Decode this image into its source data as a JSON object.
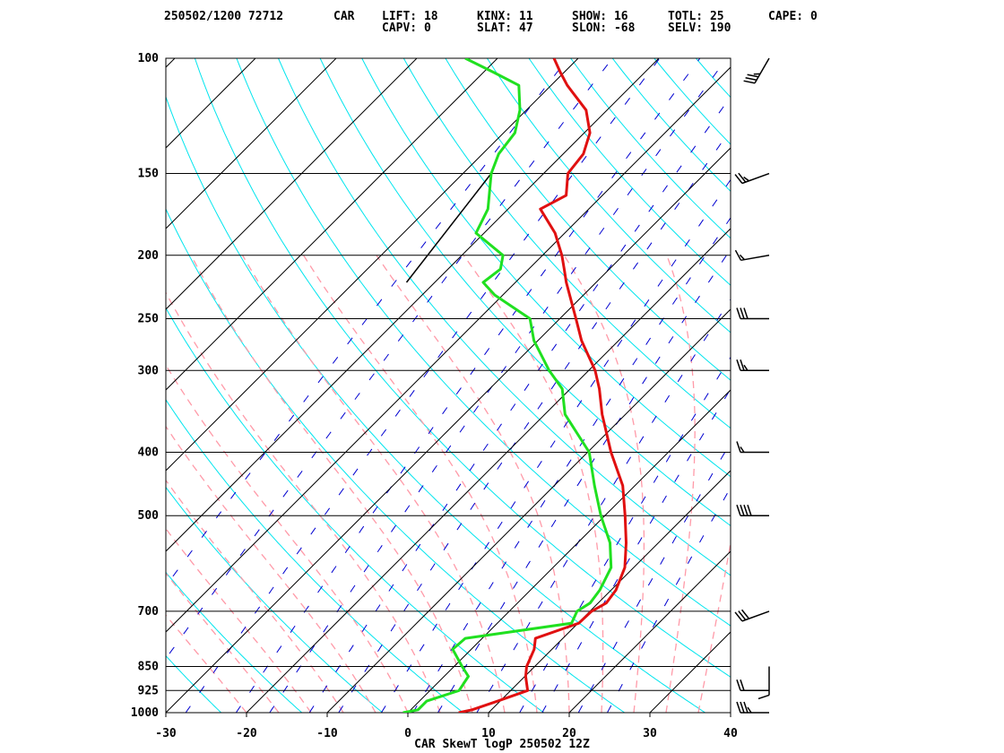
{
  "header": {
    "line1": [
      {
        "key": "date_station",
        "text": "250502/1200 72712"
      },
      {
        "key": "station",
        "text": "CAR"
      },
      {
        "key": "lift",
        "text": "LIFT:     18"
      },
      {
        "key": "kinx",
        "text": "KINX:     11"
      },
      {
        "key": "show",
        "text": "SHOW:     16"
      },
      {
        "key": "totl",
        "text": "TOTL:     25"
      },
      {
        "key": "cape",
        "text": "CAPE:      0"
      }
    ],
    "line2": [
      {
        "key": "capv",
        "text": "CAPV:      0"
      },
      {
        "key": "slat",
        "text": "SLAT:     47"
      },
      {
        "key": "slon",
        "text": "SLON:    -68"
      },
      {
        "key": "selv",
        "text": "SELV:    190"
      }
    ]
  },
  "chart_data": {
    "type": "line",
    "subtype": "skew-T log-P diagram",
    "title": "CAR SkewT logP 250502 12Z",
    "xlabel": "",
    "ylabel": "",
    "x_range_c": [
      -30,
      40
    ],
    "x_ticks": [
      -30,
      -20,
      -10,
      0,
      10,
      20,
      30,
      40
    ],
    "x_tick_labels": [
      "-30",
      "-20",
      "-10",
      "0",
      "10",
      "20",
      "30",
      "40"
    ],
    "p_range_hpa": [
      1000,
      100
    ],
    "p_levels": [
      1000,
      925,
      850,
      700,
      500,
      400,
      300,
      250,
      200,
      150,
      100
    ],
    "p_level_labels": [
      "1000",
      "925",
      "850",
      "700",
      "500",
      "400",
      "300",
      "250",
      "200",
      "150",
      "100"
    ],
    "series": [
      {
        "key": "temperature",
        "color": "#e01010",
        "points": [
          {
            "p": 1000,
            "t": 6.3
          },
          {
            "p": 990,
            "t": 7.6
          },
          {
            "p": 960,
            "t": 9.7
          },
          {
            "p": 925,
            "t": 12.1
          },
          {
            "p": 880,
            "t": 10.1
          },
          {
            "p": 850,
            "t": 9.0
          },
          {
            "p": 800,
            "t": 7.8
          },
          {
            "p": 770,
            "t": 6.6
          },
          {
            "p": 730,
            "t": 10.1
          },
          {
            "p": 700,
            "t": 10.2
          },
          {
            "p": 680,
            "t": 11.0
          },
          {
            "p": 650,
            "t": 10.6
          },
          {
            "p": 600,
            "t": 8.9
          },
          {
            "p": 550,
            "t": 6.0
          },
          {
            "p": 500,
            "t": 2.5
          },
          {
            "p": 450,
            "t": -1.5
          },
          {
            "p": 400,
            "t": -7.1
          },
          {
            "p": 350,
            "t": -12.9
          },
          {
            "p": 320,
            "t": -16.4
          },
          {
            "p": 300,
            "t": -19.2
          },
          {
            "p": 270,
            "t": -24.6
          },
          {
            "p": 250,
            "t": -28.0
          },
          {
            "p": 220,
            "t": -33.7
          },
          {
            "p": 210,
            "t": -35.6
          },
          {
            "p": 200,
            "t": -37.6
          },
          {
            "p": 185,
            "t": -41.2
          },
          {
            "p": 170,
            "t": -46.0
          },
          {
            "p": 162,
            "t": -44.5
          },
          {
            "p": 150,
            "t": -47.0
          },
          {
            "p": 140,
            "t": -47.5
          },
          {
            "p": 130,
            "t": -49.3
          },
          {
            "p": 120,
            "t": -52.6
          },
          {
            "p": 110,
            "t": -58.0
          },
          {
            "p": 105,
            "t": -60.5
          },
          {
            "p": 100,
            "t": -63.0
          }
        ]
      },
      {
        "key": "dewpoint",
        "color": "#20e020",
        "points": [
          {
            "p": 1000,
            "t": -0.6
          },
          {
            "p": 990,
            "t": 0.9
          },
          {
            "p": 960,
            "t": 0.9
          },
          {
            "p": 925,
            "t": 3.6
          },
          {
            "p": 880,
            "t": 3.0
          },
          {
            "p": 850,
            "t": 1.0
          },
          {
            "p": 800,
            "t": -2.3
          },
          {
            "p": 770,
            "t": -2.1
          },
          {
            "p": 730,
            "t": 9.2
          },
          {
            "p": 700,
            "t": 8.4
          },
          {
            "p": 680,
            "t": 9.0
          },
          {
            "p": 650,
            "t": 8.6
          },
          {
            "p": 600,
            "t": 7.2
          },
          {
            "p": 550,
            "t": 4.0
          },
          {
            "p": 500,
            "t": -0.5
          },
          {
            "p": 450,
            "t": -5.0
          },
          {
            "p": 400,
            "t": -9.8
          },
          {
            "p": 350,
            "t": -17.5
          },
          {
            "p": 320,
            "t": -21.0
          },
          {
            "p": 300,
            "t": -24.9
          },
          {
            "p": 270,
            "t": -30.5
          },
          {
            "p": 250,
            "t": -33.7
          },
          {
            "p": 230,
            "t": -41.0
          },
          {
            "p": 220,
            "t": -44.0
          },
          {
            "p": 210,
            "t": -43.5
          },
          {
            "p": 200,
            "t": -44.9
          },
          {
            "p": 185,
            "t": -51.0
          },
          {
            "p": 170,
            "t": -52.5
          },
          {
            "p": 150,
            "t": -56.5
          },
          {
            "p": 140,
            "t": -58.0
          },
          {
            "p": 130,
            "t": -58.6
          },
          {
            "p": 120,
            "t": -60.8
          },
          {
            "p": 110,
            "t": -64.0
          },
          {
            "p": 105,
            "t": -68.8
          },
          {
            "p": 100,
            "t": -74.0
          }
        ]
      }
    ],
    "moist_adiabat_segment": [
      {
        "p": 150,
        "t": -56.5
      },
      {
        "p": 220,
        "t": -53.5
      }
    ],
    "wind_barbs": [
      {
        "p": 1000,
        "dir_deg": 270,
        "speed_kt": 35
      },
      {
        "p": 925,
        "dir_deg": 270,
        "speed_kt": 20
      },
      {
        "p": 850,
        "dir_deg": 180,
        "speed_kt": 10
      },
      {
        "p": 700,
        "dir_deg": 250,
        "speed_kt": 30
      },
      {
        "p": 500,
        "dir_deg": 270,
        "speed_kt": 40
      },
      {
        "p": 400,
        "dir_deg": 270,
        "speed_kt": 15
      },
      {
        "p": 300,
        "dir_deg": 270,
        "speed_kt": 25
      },
      {
        "p": 250,
        "dir_deg": 270,
        "speed_kt": 30
      },
      {
        "p": 200,
        "dir_deg": 260,
        "speed_kt": 15
      },
      {
        "p": 150,
        "dir_deg": 250,
        "speed_kt": 25
      },
      {
        "p": 100,
        "dir_deg": 210,
        "speed_kt": 35
      }
    ],
    "grid": true,
    "background_line_colors": {
      "isotherm": "#000000",
      "isobar": "#000000",
      "dry_adiabat": "#00e5ee",
      "moist_adiabat": "#ff9aa8",
      "mixing_ratio": "#0000d0"
    }
  }
}
